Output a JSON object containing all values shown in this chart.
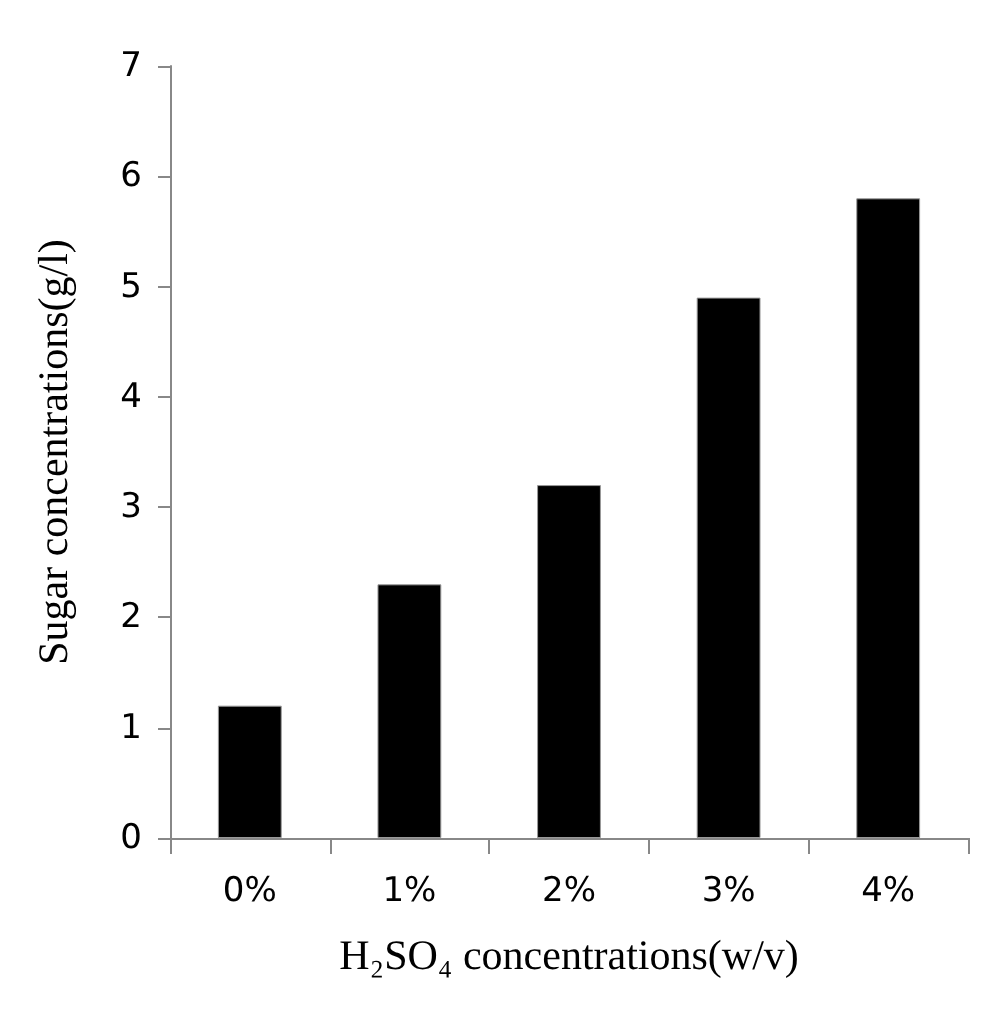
{
  "chart_data": {
    "type": "bar",
    "categories": [
      "0%",
      "1%",
      "2%",
      "3%",
      "4%"
    ],
    "values": [
      1.2,
      2.3,
      3.2,
      4.9,
      5.8
    ],
    "color": "#000000",
    "xlabel": "H₂SO₄ concentrations(w/v)",
    "ylabel": "Sugar concentrations(g/l)",
    "ylim": [
      0,
      7
    ],
    "yticks": [
      0,
      1,
      2,
      3,
      4,
      5,
      6,
      7
    ],
    "grid": false
  }
}
